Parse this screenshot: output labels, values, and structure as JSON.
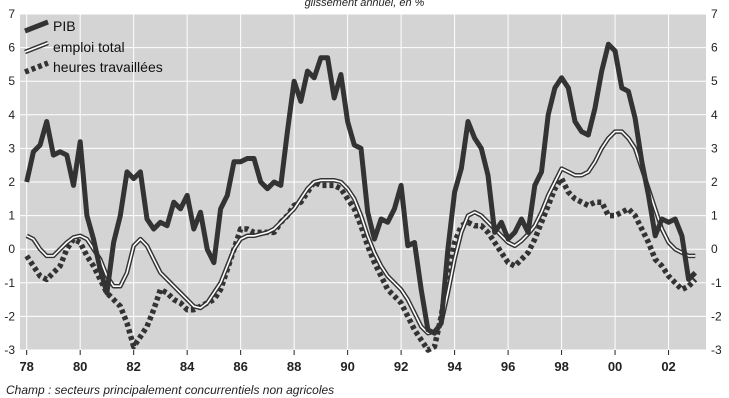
{
  "subtitle": "glissement annuel, en %",
  "note": "Champ : secteurs principalement concurrentiels non agricoles",
  "colors": {
    "background": "#d4d4d4",
    "grid": "#ffffff",
    "series": "#333333"
  },
  "chart_data": {
    "type": "line",
    "title": "",
    "subtitle": "glissement annuel, en %",
    "xlabel": "",
    "ylabel": "",
    "xlim": [
      1977.75,
      2003.4
    ],
    "ylim": [
      -3,
      7
    ],
    "y_ticks": [
      -3,
      -2,
      -1,
      0,
      1,
      2,
      3,
      4,
      5,
      6,
      7
    ],
    "y_tick_labels": [
      "-3",
      "-2",
      "-1",
      "0",
      "1",
      "2",
      "3",
      "4",
      "5",
      "6",
      "7"
    ],
    "x_ticks": [
      1978,
      1980,
      1982,
      1984,
      1986,
      1988,
      1990,
      1992,
      1994,
      1996,
      1998,
      2000,
      2002
    ],
    "x_tick_labels": [
      "78",
      "80",
      "82",
      "84",
      "86",
      "88",
      "90",
      "92",
      "94",
      "96",
      "98",
      "00",
      "02"
    ],
    "grid": true,
    "legend_position": "top-left",
    "series": [
      {
        "name": "PIB",
        "style": "thick-solid",
        "x": [
          1978.0,
          1978.25,
          1978.5,
          1978.75,
          1979.0,
          1979.25,
          1979.5,
          1979.75,
          1980.0,
          1980.25,
          1980.5,
          1980.75,
          1981.0,
          1981.25,
          1981.5,
          1981.75,
          1982.0,
          1982.25,
          1982.5,
          1982.75,
          1983.0,
          1983.25,
          1983.5,
          1983.75,
          1984.0,
          1984.25,
          1984.5,
          1984.75,
          1985.0,
          1985.25,
          1985.5,
          1985.75,
          1986.0,
          1986.25,
          1986.5,
          1986.75,
          1987.0,
          1987.25,
          1987.5,
          1987.75,
          1988.0,
          1988.25,
          1988.5,
          1988.75,
          1989.0,
          1989.25,
          1989.5,
          1989.75,
          1990.0,
          1990.25,
          1990.5,
          1990.75,
          1991.0,
          1991.25,
          1991.5,
          1991.75,
          1992.0,
          1992.25,
          1992.5,
          1992.75,
          1993.0,
          1993.25,
          1993.5,
          1993.75,
          1994.0,
          1994.25,
          1994.5,
          1994.75,
          1995.0,
          1995.25,
          1995.5,
          1995.75,
          1996.0,
          1996.25,
          1996.5,
          1996.75,
          1997.0,
          1997.25,
          1997.5,
          1997.75,
          1998.0,
          1998.25,
          1998.5,
          1998.75,
          1999.0,
          1999.25,
          1999.5,
          1999.75,
          2000.0,
          2000.25,
          2000.5,
          2000.75,
          2001.0,
          2001.25,
          2001.5,
          2001.75,
          2002.0,
          2002.25,
          2002.5,
          2002.75,
          2003.0
        ],
        "values": [
          2.0,
          2.9,
          3.1,
          3.8,
          2.8,
          2.9,
          2.8,
          1.9,
          3.2,
          1.0,
          0.3,
          -0.6,
          -1.3,
          0.2,
          1.0,
          2.3,
          2.1,
          2.3,
          0.9,
          0.6,
          0.8,
          0.7,
          1.4,
          1.2,
          1.6,
          0.6,
          1.1,
          0.0,
          -0.4,
          1.2,
          1.6,
          2.6,
          2.6,
          2.7,
          2.7,
          2.0,
          1.8,
          2.0,
          1.9,
          3.5,
          5.0,
          4.4,
          5.3,
          5.1,
          5.7,
          5.7,
          4.5,
          5.2,
          3.8,
          3.1,
          3.0,
          1.1,
          0.3,
          0.9,
          0.8,
          1.2,
          1.9,
          0.1,
          0.2,
          -1.2,
          -2.4,
          -2.5,
          -2.2,
          0.0,
          1.7,
          2.4,
          3.8,
          3.3,
          3.0,
          2.2,
          0.5,
          0.8,
          0.3,
          0.5,
          0.9,
          0.5,
          1.9,
          2.3,
          4.0,
          4.8,
          5.1,
          4.8,
          3.8,
          3.5,
          3.4,
          4.2,
          5.3,
          6.1,
          5.9,
          4.8,
          4.7,
          3.9,
          2.6,
          1.6,
          0.4,
          0.9,
          0.8,
          0.9,
          0.4,
          -0.9,
          -0.7
        ]
      },
      {
        "name": "emploi total",
        "style": "double-line",
        "x": [
          1978.0,
          1978.25,
          1978.5,
          1978.75,
          1979.0,
          1979.25,
          1979.5,
          1979.75,
          1980.0,
          1980.25,
          1980.5,
          1980.75,
          1981.0,
          1981.25,
          1981.5,
          1981.75,
          1982.0,
          1982.25,
          1982.5,
          1982.75,
          1983.0,
          1983.25,
          1983.5,
          1983.75,
          1984.0,
          1984.25,
          1984.5,
          1984.75,
          1985.0,
          1985.25,
          1985.5,
          1985.75,
          1986.0,
          1986.25,
          1986.5,
          1986.75,
          1987.0,
          1987.25,
          1987.5,
          1987.75,
          1988.0,
          1988.25,
          1988.5,
          1988.75,
          1989.0,
          1989.25,
          1989.5,
          1989.75,
          1990.0,
          1990.25,
          1990.5,
          1990.75,
          1991.0,
          1991.25,
          1991.5,
          1991.75,
          1992.0,
          1992.25,
          1992.5,
          1992.75,
          1993.0,
          1993.25,
          1993.5,
          1993.75,
          1994.0,
          1994.25,
          1994.5,
          1994.75,
          1995.0,
          1995.25,
          1995.5,
          1995.75,
          1996.0,
          1996.25,
          1996.5,
          1996.75,
          1997.0,
          1997.25,
          1997.5,
          1997.75,
          1998.0,
          1998.25,
          1998.5,
          1998.75,
          1999.0,
          1999.25,
          1999.5,
          1999.75,
          2000.0,
          2000.25,
          2000.5,
          2000.75,
          2001.0,
          2001.25,
          2001.5,
          2001.75,
          2002.0,
          2002.25,
          2002.5,
          2002.75,
          2003.0
        ],
        "values": [
          0.4,
          0.3,
          0.0,
          -0.2,
          -0.2,
          0.0,
          0.2,
          0.35,
          0.4,
          0.3,
          0.0,
          -0.3,
          -0.8,
          -1.1,
          -1.1,
          -0.7,
          0.1,
          0.3,
          0.1,
          -0.3,
          -0.7,
          -0.9,
          -1.1,
          -1.3,
          -1.5,
          -1.7,
          -1.75,
          -1.6,
          -1.3,
          -1.0,
          -0.5,
          0.0,
          0.3,
          0.4,
          0.4,
          0.45,
          0.5,
          0.6,
          0.8,
          1.0,
          1.2,
          1.5,
          1.8,
          2.0,
          2.05,
          2.05,
          2.05,
          2.0,
          1.8,
          1.5,
          1.0,
          0.4,
          -0.1,
          -0.5,
          -0.8,
          -1.0,
          -1.2,
          -1.5,
          -1.9,
          -2.3,
          -2.5,
          -2.45,
          -2.2,
          -1.3,
          -0.3,
          0.5,
          1.0,
          1.1,
          1.0,
          0.8,
          0.6,
          0.4,
          0.2,
          0.1,
          0.25,
          0.45,
          0.7,
          1.1,
          1.6,
          2.0,
          2.4,
          2.3,
          2.2,
          2.2,
          2.3,
          2.6,
          3.0,
          3.3,
          3.5,
          3.5,
          3.3,
          3.0,
          2.4,
          1.8,
          1.2,
          0.6,
          0.2,
          0.0,
          -0.1,
          -0.2,
          -0.2
        ]
      },
      {
        "name": "heures travaillées",
        "style": "dotted",
        "x": [
          1978.0,
          1978.25,
          1978.5,
          1978.75,
          1979.0,
          1979.25,
          1979.5,
          1979.75,
          1980.0,
          1980.25,
          1980.5,
          1980.75,
          1981.0,
          1981.25,
          1981.5,
          1981.75,
          1982.0,
          1982.25,
          1982.5,
          1982.75,
          1983.0,
          1983.25,
          1983.5,
          1983.75,
          1984.0,
          1984.25,
          1984.5,
          1984.75,
          1985.0,
          1985.25,
          1985.5,
          1985.75,
          1986.0,
          1986.25,
          1986.5,
          1986.75,
          1987.0,
          1987.25,
          1987.5,
          1987.75,
          1988.0,
          1988.25,
          1988.5,
          1988.75,
          1989.0,
          1989.25,
          1989.5,
          1989.75,
          1990.0,
          1990.25,
          1990.5,
          1990.75,
          1991.0,
          1991.25,
          1991.5,
          1991.75,
          1992.0,
          1992.25,
          1992.5,
          1992.75,
          1993.0,
          1993.25,
          1993.5,
          1993.75,
          1994.0,
          1994.25,
          1994.5,
          1994.75,
          1995.0,
          1995.25,
          1995.5,
          1995.75,
          1996.0,
          1996.25,
          1996.5,
          1996.75,
          1997.0,
          1997.25,
          1997.5,
          1997.75,
          1998.0,
          1998.25,
          1998.5,
          1998.75,
          1999.0,
          1999.25,
          1999.5,
          1999.75,
          2000.0,
          2000.25,
          2000.5,
          2000.75,
          2001.0,
          2001.25,
          2001.5,
          2001.75,
          2002.0,
          2002.25,
          2002.5,
          2002.75,
          2003.0
        ],
        "values": [
          -0.2,
          -0.5,
          -0.8,
          -0.9,
          -0.7,
          -0.5,
          0.0,
          0.3,
          0.2,
          -0.2,
          -0.5,
          -0.9,
          -1.3,
          -1.5,
          -1.7,
          -2.2,
          -2.9,
          -2.6,
          -2.3,
          -1.8,
          -1.2,
          -1.3,
          -1.5,
          -1.6,
          -1.8,
          -1.8,
          -1.7,
          -1.6,
          -1.5,
          -1.2,
          -0.6,
          0.0,
          0.6,
          0.6,
          0.5,
          0.5,
          0.5,
          0.5,
          0.8,
          1.0,
          1.3,
          1.4,
          1.7,
          2.0,
          1.9,
          1.9,
          1.9,
          1.8,
          1.5,
          1.2,
          0.7,
          0.1,
          -0.4,
          -0.8,
          -1.2,
          -1.4,
          -1.6,
          -2.0,
          -2.4,
          -2.7,
          -3.0,
          -2.9,
          -2.0,
          -0.8,
          0.2,
          0.7,
          0.8,
          0.7,
          0.7,
          0.5,
          0.2,
          -0.1,
          -0.4,
          -0.5,
          -0.3,
          -0.1,
          0.3,
          0.8,
          1.3,
          1.8,
          2.1,
          1.7,
          1.5,
          1.4,
          1.3,
          1.4,
          1.4,
          1.0,
          1.0,
          1.1,
          1.2,
          1.0,
          0.6,
          0.2,
          -0.3,
          -0.5,
          -0.8,
          -1.0,
          -1.2,
          -1.1,
          -0.9
        ]
      }
    ]
  }
}
